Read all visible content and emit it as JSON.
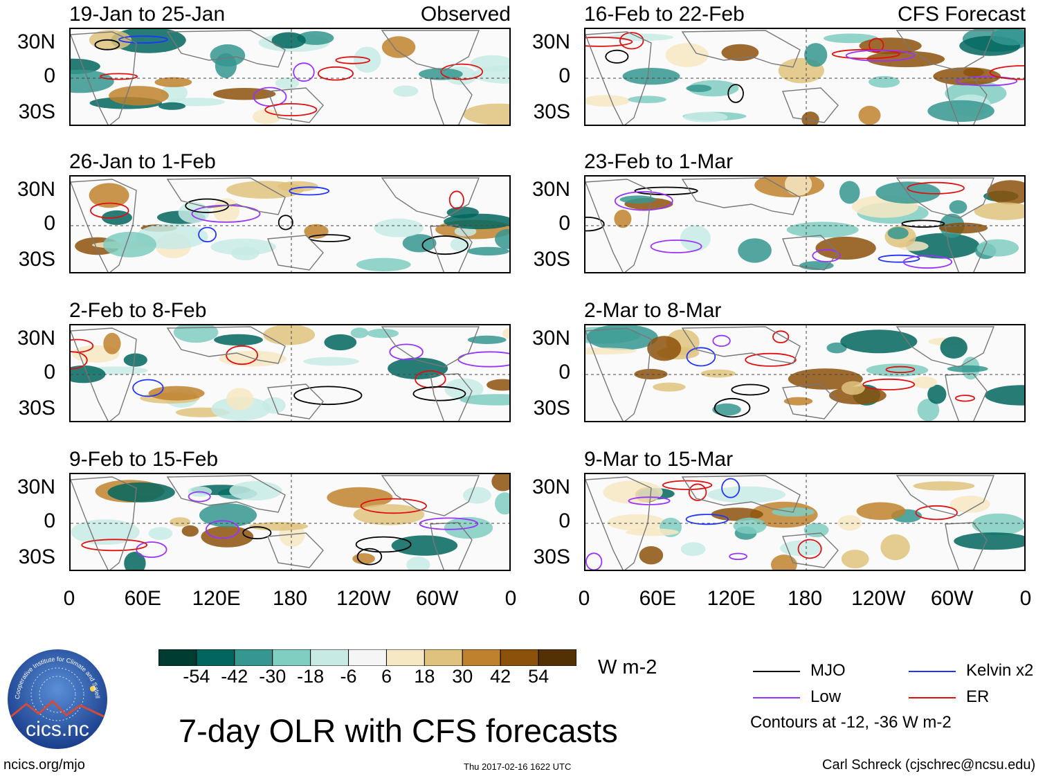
{
  "chart_data": {
    "type": "heatmap",
    "title": "7-day OLR with CFS forecasts",
    "panels": [
      {
        "column": "Observed",
        "period": "19-Jan to 25-Jan",
        "label": "Observed"
      },
      {
        "column": "Observed",
        "period": "26-Jan to 1-Feb"
      },
      {
        "column": "Observed",
        "period": "2-Feb to 8-Feb"
      },
      {
        "column": "Observed",
        "period": "9-Feb to 15-Feb"
      },
      {
        "column": "CFS Forecast",
        "period": "16-Feb to 22-Feb",
        "label": "CFS Forecast"
      },
      {
        "column": "CFS Forecast",
        "period": "23-Feb to 1-Mar"
      },
      {
        "column": "CFS Forecast",
        "period": "2-Mar to 8-Mar"
      },
      {
        "column": "CFS Forecast",
        "period": "9-Mar to 15-Mar"
      }
    ],
    "yticks": [
      "30N",
      "0",
      "30S"
    ],
    "xticks": [
      "0",
      "60E",
      "120E",
      "180",
      "120W",
      "60W",
      "0"
    ],
    "colorbar": {
      "units": "W m-2",
      "labels": [
        "-54",
        "-42",
        "-30",
        "-18",
        "-6",
        "6",
        "18",
        "30",
        "42",
        "54"
      ],
      "colors": [
        "#003c30",
        "#01665e",
        "#35978f",
        "#80cdc1",
        "#c7eae5",
        "#f5f5f5",
        "#f6e8c3",
        "#dfc27d",
        "#bf812d",
        "#8c510a",
        "#543005"
      ]
    },
    "legend": [
      {
        "label": "MJO",
        "color": "#000000"
      },
      {
        "label": "Kelvin x2",
        "color": "#1f35ff"
      },
      {
        "label": "Low",
        "color": "#9933ff"
      },
      {
        "label": "ER",
        "color": "#e01010"
      }
    ],
    "contour_note": "Contours at -12, -36 W m-2"
  },
  "logo": {
    "text": "cics.nc",
    "ring_text": "Cooperative Institute for Climate and Satellites"
  },
  "footer": {
    "url": "ncics.org/mjo",
    "timestamp": "Thu 2017-02-16 1622 UTC",
    "author": "Carl Schreck (cjschrec@ncsu.edu)"
  }
}
